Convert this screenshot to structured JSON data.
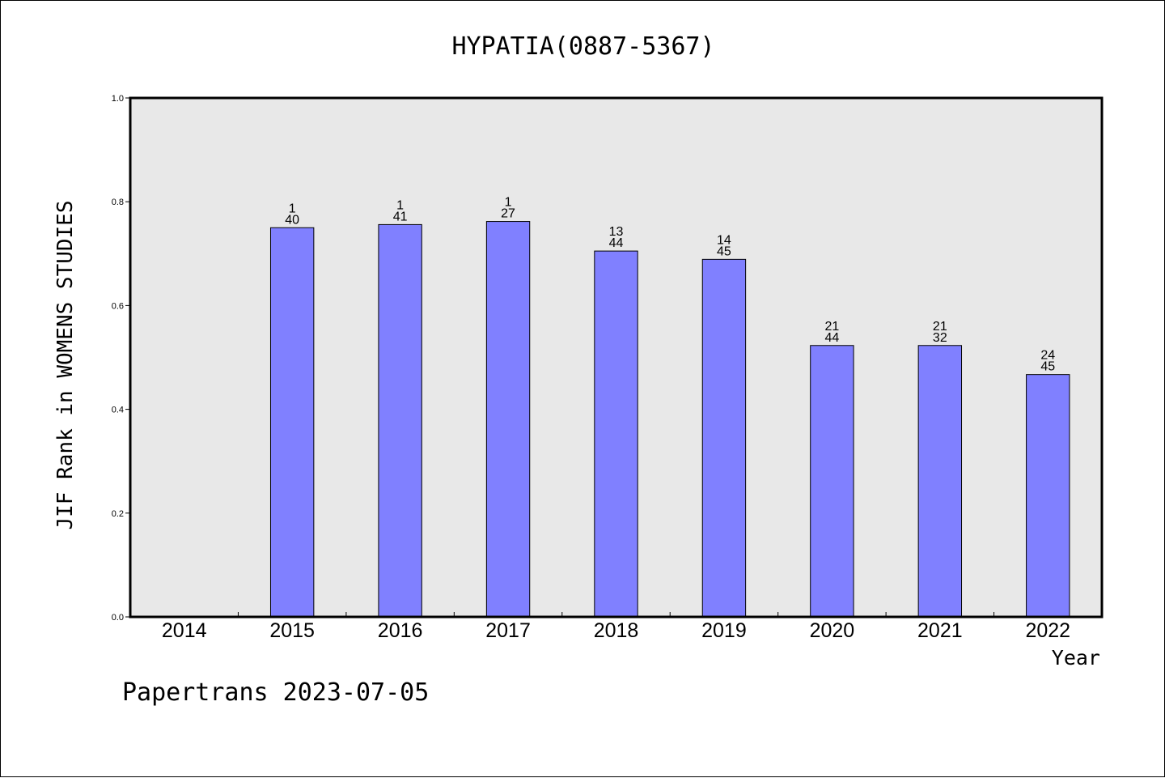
{
  "chart_data": {
    "type": "bar",
    "title": "HYPATIA(0887-5367)",
    "xlabel": "Year",
    "ylabel": "JIF Rank in WOMENS STUDIES",
    "ylim": [
      0,
      1.0
    ],
    "yticks": [
      "0.0",
      "0.2",
      "0.4",
      "0.6",
      "0.8",
      "1.0"
    ],
    "categories": [
      "2014",
      "2015",
      "2016",
      "2017",
      "2018",
      "2019",
      "2020",
      "2021",
      "2022"
    ],
    "values": [
      null,
      0.75,
      0.756,
      0.762,
      0.705,
      0.689,
      0.523,
      0.523,
      0.467
    ],
    "labels": [
      null,
      [
        "1",
        "40"
      ],
      [
        "1",
        "41"
      ],
      [
        "1",
        "27"
      ],
      [
        "13",
        "44"
      ],
      [
        "14",
        "45"
      ],
      [
        "21",
        "44"
      ],
      [
        "21",
        "32"
      ],
      [
        "24",
        "45"
      ]
    ],
    "grid": false,
    "colors": {
      "bar": "#8080ff",
      "plot_bg": "#e8e8e8",
      "axis": "#000000"
    }
  },
  "footer": "Papertrans 2023-07-05"
}
